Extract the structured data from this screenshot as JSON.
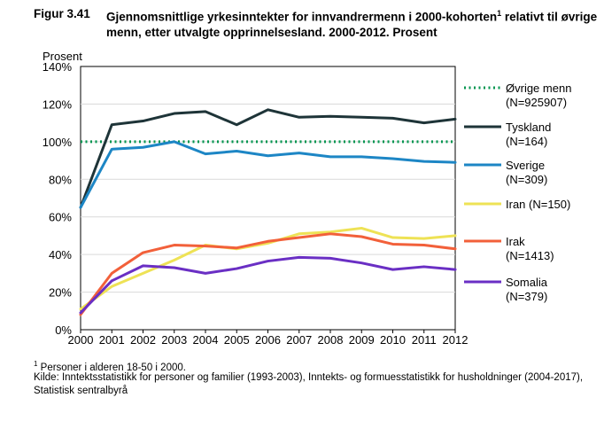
{
  "figure": {
    "number": "Figur 3.41",
    "title": "Gjennomsnittlige yrkesinntekter for innvandrermenn i 2000-kohorten",
    "title_sup": "1",
    "title_rest": " relativt til øvrige menn, etter utvalgte opprinnelsesland. 2000-2012. Prosent"
  },
  "footnotes": {
    "note_sup": "1",
    "note": " Personer i alderen 18-50 i 2000.",
    "source": "Kilde: Inntektsstatistikk for personer og familier (1993-2003), Inntekts- og formuesstatistikk for husholdninger (2004-2017), Statistisk sentralbyrå"
  },
  "chart_data": {
    "type": "line",
    "ylabel": "Prosent",
    "x": [
      "2000",
      "2001",
      "2002",
      "2003",
      "2004",
      "2005",
      "2006",
      "2007",
      "2008",
      "2009",
      "2010",
      "2011",
      "2012"
    ],
    "ylim": [
      0,
      140
    ],
    "yticks": [
      "0%",
      "20%",
      "40%",
      "60%",
      "80%",
      "100%",
      "120%",
      "140%"
    ],
    "grid": true,
    "legend_position": "right",
    "series": [
      {
        "name": "Øvrige menn",
        "name2": "(N=925907)",
        "color": "#00954f",
        "dashed": true,
        "values": [
          100,
          100,
          100,
          100,
          100,
          100,
          100,
          100,
          100,
          100,
          100,
          100,
          100
        ]
      },
      {
        "name": "Tyskland",
        "name2": "(N=164)",
        "color": "#1e3438",
        "dashed": false,
        "values": [
          65,
          109,
          111,
          115,
          116,
          109,
          117,
          113,
          113.5,
          113,
          112.5,
          110,
          112
        ]
      },
      {
        "name": "Sverige",
        "name2": "(N=309)",
        "color": "#1d86c5",
        "dashed": false,
        "values": [
          65,
          96,
          97,
          100,
          93.5,
          95,
          92.5,
          94,
          92,
          92,
          91,
          89.5,
          89
        ]
      },
      {
        "name": "Iran (N=150)",
        "name2": "",
        "color": "#eee255",
        "dashed": false,
        "values": [
          11,
          23,
          30,
          37,
          45,
          43,
          46,
          51,
          52,
          54,
          49,
          48.5,
          50
        ]
      },
      {
        "name": "Irak",
        "name2": "(N=1413)",
        "color": "#f2603a",
        "dashed": false,
        "values": [
          8,
          30,
          41,
          45,
          44.5,
          43.5,
          47,
          49,
          51,
          49.5,
          45.5,
          45,
          43
        ]
      },
      {
        "name": "Somalia",
        "name2": "(N=379)",
        "color": "#6a2fc4",
        "dashed": false,
        "values": [
          9,
          26,
          34,
          33,
          30,
          32.5,
          36.5,
          38.5,
          38,
          35.5,
          32,
          33.5,
          32
        ]
      }
    ]
  }
}
